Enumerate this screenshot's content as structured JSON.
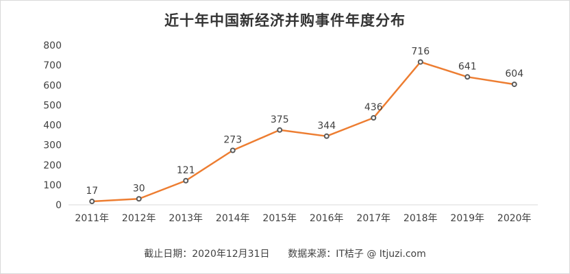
{
  "chart_data": {
    "type": "line",
    "title": "近十年中国新经济并购事件年度分布",
    "categories": [
      "2011年",
      "2012年",
      "2013年",
      "2014年",
      "2015年",
      "2016年",
      "2017年",
      "2018年",
      "2019年",
      "2020年"
    ],
    "values": [
      17,
      30,
      121,
      273,
      375,
      344,
      436,
      716,
      641,
      604
    ],
    "ylim": [
      0,
      800
    ],
    "yticks": [
      0,
      100,
      200,
      300,
      400,
      500,
      600,
      700,
      800
    ],
    "xlabel": "",
    "ylabel": "",
    "grid": false,
    "legend": "none",
    "line_color": "#ED7D31",
    "marker_color": "#595959"
  },
  "footnote": {
    "date_label": "截止日期：2020年12月31日",
    "source_label": "数据来源：IT桔子 @ Itjuzi.com"
  }
}
